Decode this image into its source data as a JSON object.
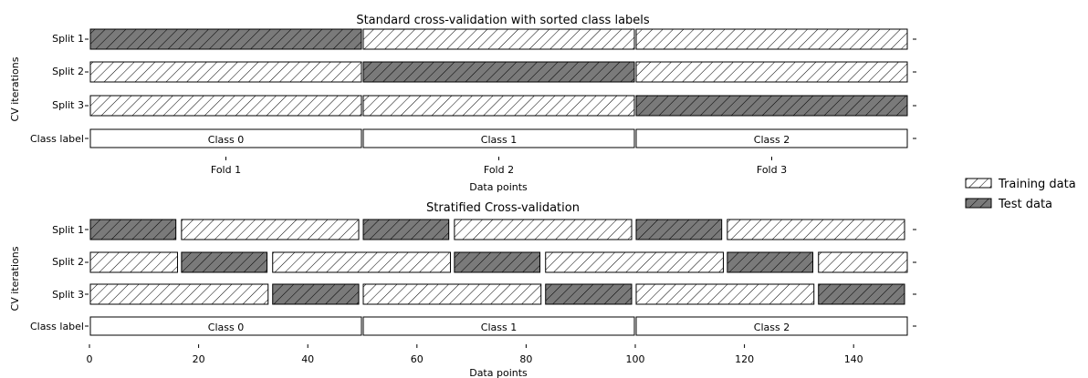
{
  "chart_data": [
    {
      "type": "bar",
      "title": "Standard cross-validation with sorted class labels",
      "xlabel": "Data points",
      "ylabel": "CV iterations",
      "xlim": [
        0,
        150
      ],
      "rows": [
        "Split 1",
        "Split 2",
        "Split 3",
        "Class label"
      ],
      "x_ticks": [
        {
          "value": 25,
          "label": "Fold 1"
        },
        {
          "value": 75,
          "label": "Fold 2"
        },
        {
          "value": 125,
          "label": "Fold 3"
        }
      ],
      "splits": [
        {
          "row": "Split 1",
          "segments": [
            {
              "start": 0,
              "end": 50,
              "kind": "test"
            },
            {
              "start": 50,
              "end": 100,
              "kind": "train"
            },
            {
              "start": 100,
              "end": 150,
              "kind": "train"
            }
          ]
        },
        {
          "row": "Split 2",
          "segments": [
            {
              "start": 0,
              "end": 50,
              "kind": "train"
            },
            {
              "start": 50,
              "end": 100,
              "kind": "test"
            },
            {
              "start": 100,
              "end": 150,
              "kind": "train"
            }
          ]
        },
        {
          "row": "Split 3",
          "segments": [
            {
              "start": 0,
              "end": 50,
              "kind": "train"
            },
            {
              "start": 50,
              "end": 100,
              "kind": "train"
            },
            {
              "start": 100,
              "end": 150,
              "kind": "test"
            }
          ]
        }
      ],
      "class_labels": [
        {
          "start": 0,
          "end": 50,
          "label": "Class 0"
        },
        {
          "start": 50,
          "end": 100,
          "label": "Class 1"
        },
        {
          "start": 100,
          "end": 150,
          "label": "Class 2"
        }
      ]
    },
    {
      "type": "bar",
      "title": "Stratified Cross-validation",
      "xlabel": "Data points",
      "ylabel": "CV iterations",
      "xlim": [
        0,
        150
      ],
      "rows": [
        "Split 1",
        "Split 2",
        "Split 3",
        "Class label"
      ],
      "x_ticks": [
        {
          "value": 0,
          "label": "0"
        },
        {
          "value": 20,
          "label": "20"
        },
        {
          "value": 40,
          "label": "40"
        },
        {
          "value": 60,
          "label": "60"
        },
        {
          "value": 80,
          "label": "80"
        },
        {
          "value": 100,
          "label": "100"
        },
        {
          "value": 120,
          "label": "120"
        },
        {
          "value": 140,
          "label": "140"
        }
      ],
      "splits": [
        {
          "row": "Split 1",
          "segments": [
            {
              "start": 0,
              "end": 16,
              "kind": "test"
            },
            {
              "start": 16.7,
              "end": 49.5,
              "kind": "train"
            },
            {
              "start": 50,
              "end": 66,
              "kind": "test"
            },
            {
              "start": 66.7,
              "end": 99.5,
              "kind": "train"
            },
            {
              "start": 100,
              "end": 116,
              "kind": "test"
            },
            {
              "start": 116.7,
              "end": 149.5,
              "kind": "train"
            }
          ]
        },
        {
          "row": "Split 2",
          "segments": [
            {
              "start": 0,
              "end": 16.3,
              "kind": "train"
            },
            {
              "start": 16.7,
              "end": 32.7,
              "kind": "test"
            },
            {
              "start": 33.4,
              "end": 66.3,
              "kind": "train"
            },
            {
              "start": 66.7,
              "end": 82.7,
              "kind": "test"
            },
            {
              "start": 83.4,
              "end": 116.3,
              "kind": "train"
            },
            {
              "start": 116.7,
              "end": 132.7,
              "kind": "test"
            },
            {
              "start": 133.4,
              "end": 150,
              "kind": "train"
            }
          ]
        },
        {
          "row": "Split 3",
          "segments": [
            {
              "start": 0,
              "end": 32.9,
              "kind": "train"
            },
            {
              "start": 33.4,
              "end": 49.5,
              "kind": "test"
            },
            {
              "start": 50,
              "end": 82.9,
              "kind": "train"
            },
            {
              "start": 83.4,
              "end": 99.5,
              "kind": "test"
            },
            {
              "start": 100,
              "end": 132.9,
              "kind": "train"
            },
            {
              "start": 133.4,
              "end": 149.5,
              "kind": "test"
            }
          ]
        }
      ],
      "class_labels": [
        {
          "start": 0,
          "end": 50,
          "label": "Class 0"
        },
        {
          "start": 50,
          "end": 100,
          "label": "Class 1"
        },
        {
          "start": 100,
          "end": 150,
          "label": "Class 2"
        }
      ]
    }
  ],
  "legend": {
    "placement": "right",
    "items": [
      {
        "label": "Training data",
        "kind": "train"
      },
      {
        "label": "Test data",
        "kind": "test"
      }
    ]
  },
  "colors": {
    "test_fill": "#7a7a7a",
    "train_fill": "#ffffff",
    "edge": "#000000"
  }
}
